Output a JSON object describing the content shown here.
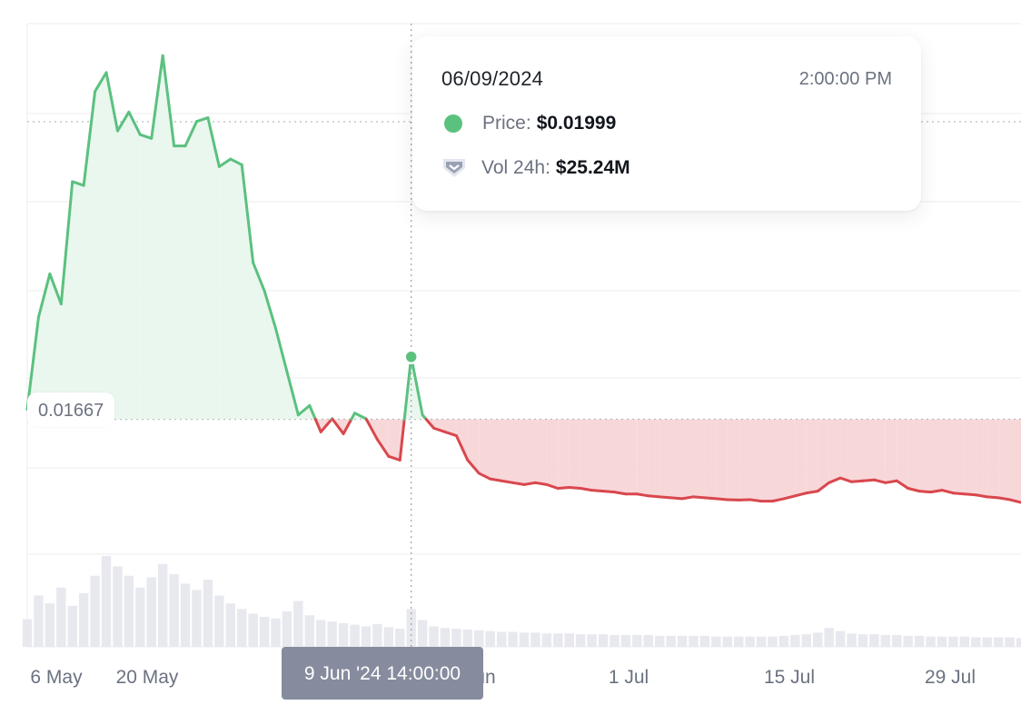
{
  "chart_data": {
    "type": "area",
    "x_ticks": [
      "6 May",
      "20 May",
      "3 Jun",
      "1 Jul",
      "15 Jul",
      "29 Jul"
    ],
    "reference_price": "0.01667",
    "reference_value": 0.01667,
    "series": [
      {
        "x": [
          "2024-05-06",
          "2024-05-07",
          "2024-05-08",
          "2024-05-09",
          "2024-05-10",
          "2024-05-11",
          "2024-05-12",
          "2024-05-13",
          "2024-05-14",
          "2024-05-15",
          "2024-05-16",
          "2024-05-17",
          "2024-05-18",
          "2024-05-19",
          "2024-05-20",
          "2024-05-21",
          "2024-05-22",
          "2024-05-23",
          "2024-05-24",
          "2024-05-25",
          "2024-05-26",
          "2024-05-27",
          "2024-05-28",
          "2024-05-29",
          "2024-05-30",
          "2024-05-31",
          "2024-06-01",
          "2024-06-02",
          "2024-06-03",
          "2024-06-04",
          "2024-06-05",
          "2024-06-06",
          "2024-06-07",
          "2024-06-08",
          "2024-06-09",
          "2024-06-10",
          "2024-06-11",
          "2024-06-12",
          "2024-06-13",
          "2024-06-14",
          "2024-06-15",
          "2024-06-16",
          "2024-06-17",
          "2024-06-18",
          "2024-06-19",
          "2024-06-20",
          "2024-06-21",
          "2024-06-22",
          "2024-06-23",
          "2024-06-24",
          "2024-06-25",
          "2024-06-26",
          "2024-06-27",
          "2024-06-28",
          "2024-06-29",
          "2024-06-30",
          "2024-07-01",
          "2024-07-02",
          "2024-07-03",
          "2024-07-04",
          "2024-07-05",
          "2024-07-06",
          "2024-07-07",
          "2024-07-08",
          "2024-07-09",
          "2024-07-10",
          "2024-07-11",
          "2024-07-12",
          "2024-07-13",
          "2024-07-14",
          "2024-07-15",
          "2024-07-16",
          "2024-07-17",
          "2024-07-18",
          "2024-07-19",
          "2024-07-20",
          "2024-07-21",
          "2024-07-22",
          "2024-07-23",
          "2024-07-24",
          "2024-07-25",
          "2024-07-26",
          "2024-07-27",
          "2024-07-28",
          "2024-07-29",
          "2024-07-30",
          "2024-07-31",
          "2024-08-01",
          "2024-08-02"
        ],
        "values": [
          0.0172,
          0.0221,
          0.0244,
          0.0228,
          0.0293,
          0.0291,
          0.0341,
          0.0351,
          0.032,
          0.033,
          0.0318,
          0.0316,
          0.036,
          0.0312,
          0.0312,
          0.0325,
          0.0327,
          0.0301,
          0.0305,
          0.0302,
          0.025,
          0.0235,
          0.0215,
          0.0192,
          0.0169,
          0.0174,
          0.016,
          0.0167,
          0.0159,
          0.017,
          0.0167,
          0.0156,
          0.0147,
          0.0145,
          0.01999,
          0.0169,
          0.0162,
          0.016,
          0.0158,
          0.0145,
          0.0138,
          0.0135,
          0.0134,
          0.0133,
          0.0132,
          0.0133,
          0.0132,
          0.013,
          0.01305,
          0.013,
          0.0129,
          0.01285,
          0.0128,
          0.0127,
          0.0127,
          0.0126,
          0.01255,
          0.0125,
          0.01245,
          0.01255,
          0.0125,
          0.01245,
          0.0124,
          0.01238,
          0.0124,
          0.01232,
          0.01232,
          0.01245,
          0.0126,
          0.01275,
          0.01285,
          0.0133,
          0.01355,
          0.01335,
          0.0134,
          0.01345,
          0.0133,
          0.0134,
          0.013,
          0.01285,
          0.0128,
          0.0129,
          0.01275,
          0.0127,
          0.01265,
          0.01255,
          0.0125,
          0.0124,
          0.01225
        ]
      }
    ],
    "volume_values": [
      3.5,
      6.5,
      5.5,
      7.5,
      5.2,
      6.8,
      9.0,
      11.5,
      10.2,
      9.0,
      7.5,
      8.8,
      10.5,
      9.2,
      8.0,
      7.2,
      8.5,
      6.5,
      5.5,
      4.8,
      4.2,
      3.8,
      3.6,
      4.5,
      5.8,
      4.0,
      3.4,
      3.2,
      3.0,
      2.8,
      2.6,
      2.9,
      2.5,
      2.3,
      4.8,
      3.4,
      2.6,
      2.4,
      2.3,
      2.2,
      2.1,
      2.0,
      1.9,
      1.9,
      1.8,
      1.8,
      1.7,
      1.7,
      1.7,
      1.6,
      1.6,
      1.6,
      1.5,
      1.5,
      1.5,
      1.5,
      1.4,
      1.4,
      1.4,
      1.4,
      1.4,
      1.3,
      1.3,
      1.3,
      1.3,
      1.3,
      1.3,
      1.4,
      1.5,
      1.6,
      1.8,
      2.4,
      2.0,
      1.7,
      1.6,
      1.6,
      1.5,
      1.5,
      1.4,
      1.4,
      1.3,
      1.3,
      1.3,
      1.3,
      1.2,
      1.2,
      1.2,
      1.2,
      1.1
    ],
    "hover_index": 34,
    "colors": {
      "up": "#5bc17f",
      "down": "#d9474d",
      "up_fill": "#e9f7ee",
      "down_fill": "#f8d7d9",
      "grid": "#ececec",
      "volume": "#e8e9ee"
    }
  },
  "tooltip": {
    "date": "06/09/2024",
    "time": "2:00:00 PM",
    "price_label": "Price:",
    "price_value": "$0.01999",
    "vol_label": "Vol 24h:",
    "vol_value": "$25.24M",
    "price_icon": "circle-dot-icon",
    "vol_icon": "shield-chevron-icon"
  },
  "crosshair_label": "9 Jun '24 14:00:00"
}
